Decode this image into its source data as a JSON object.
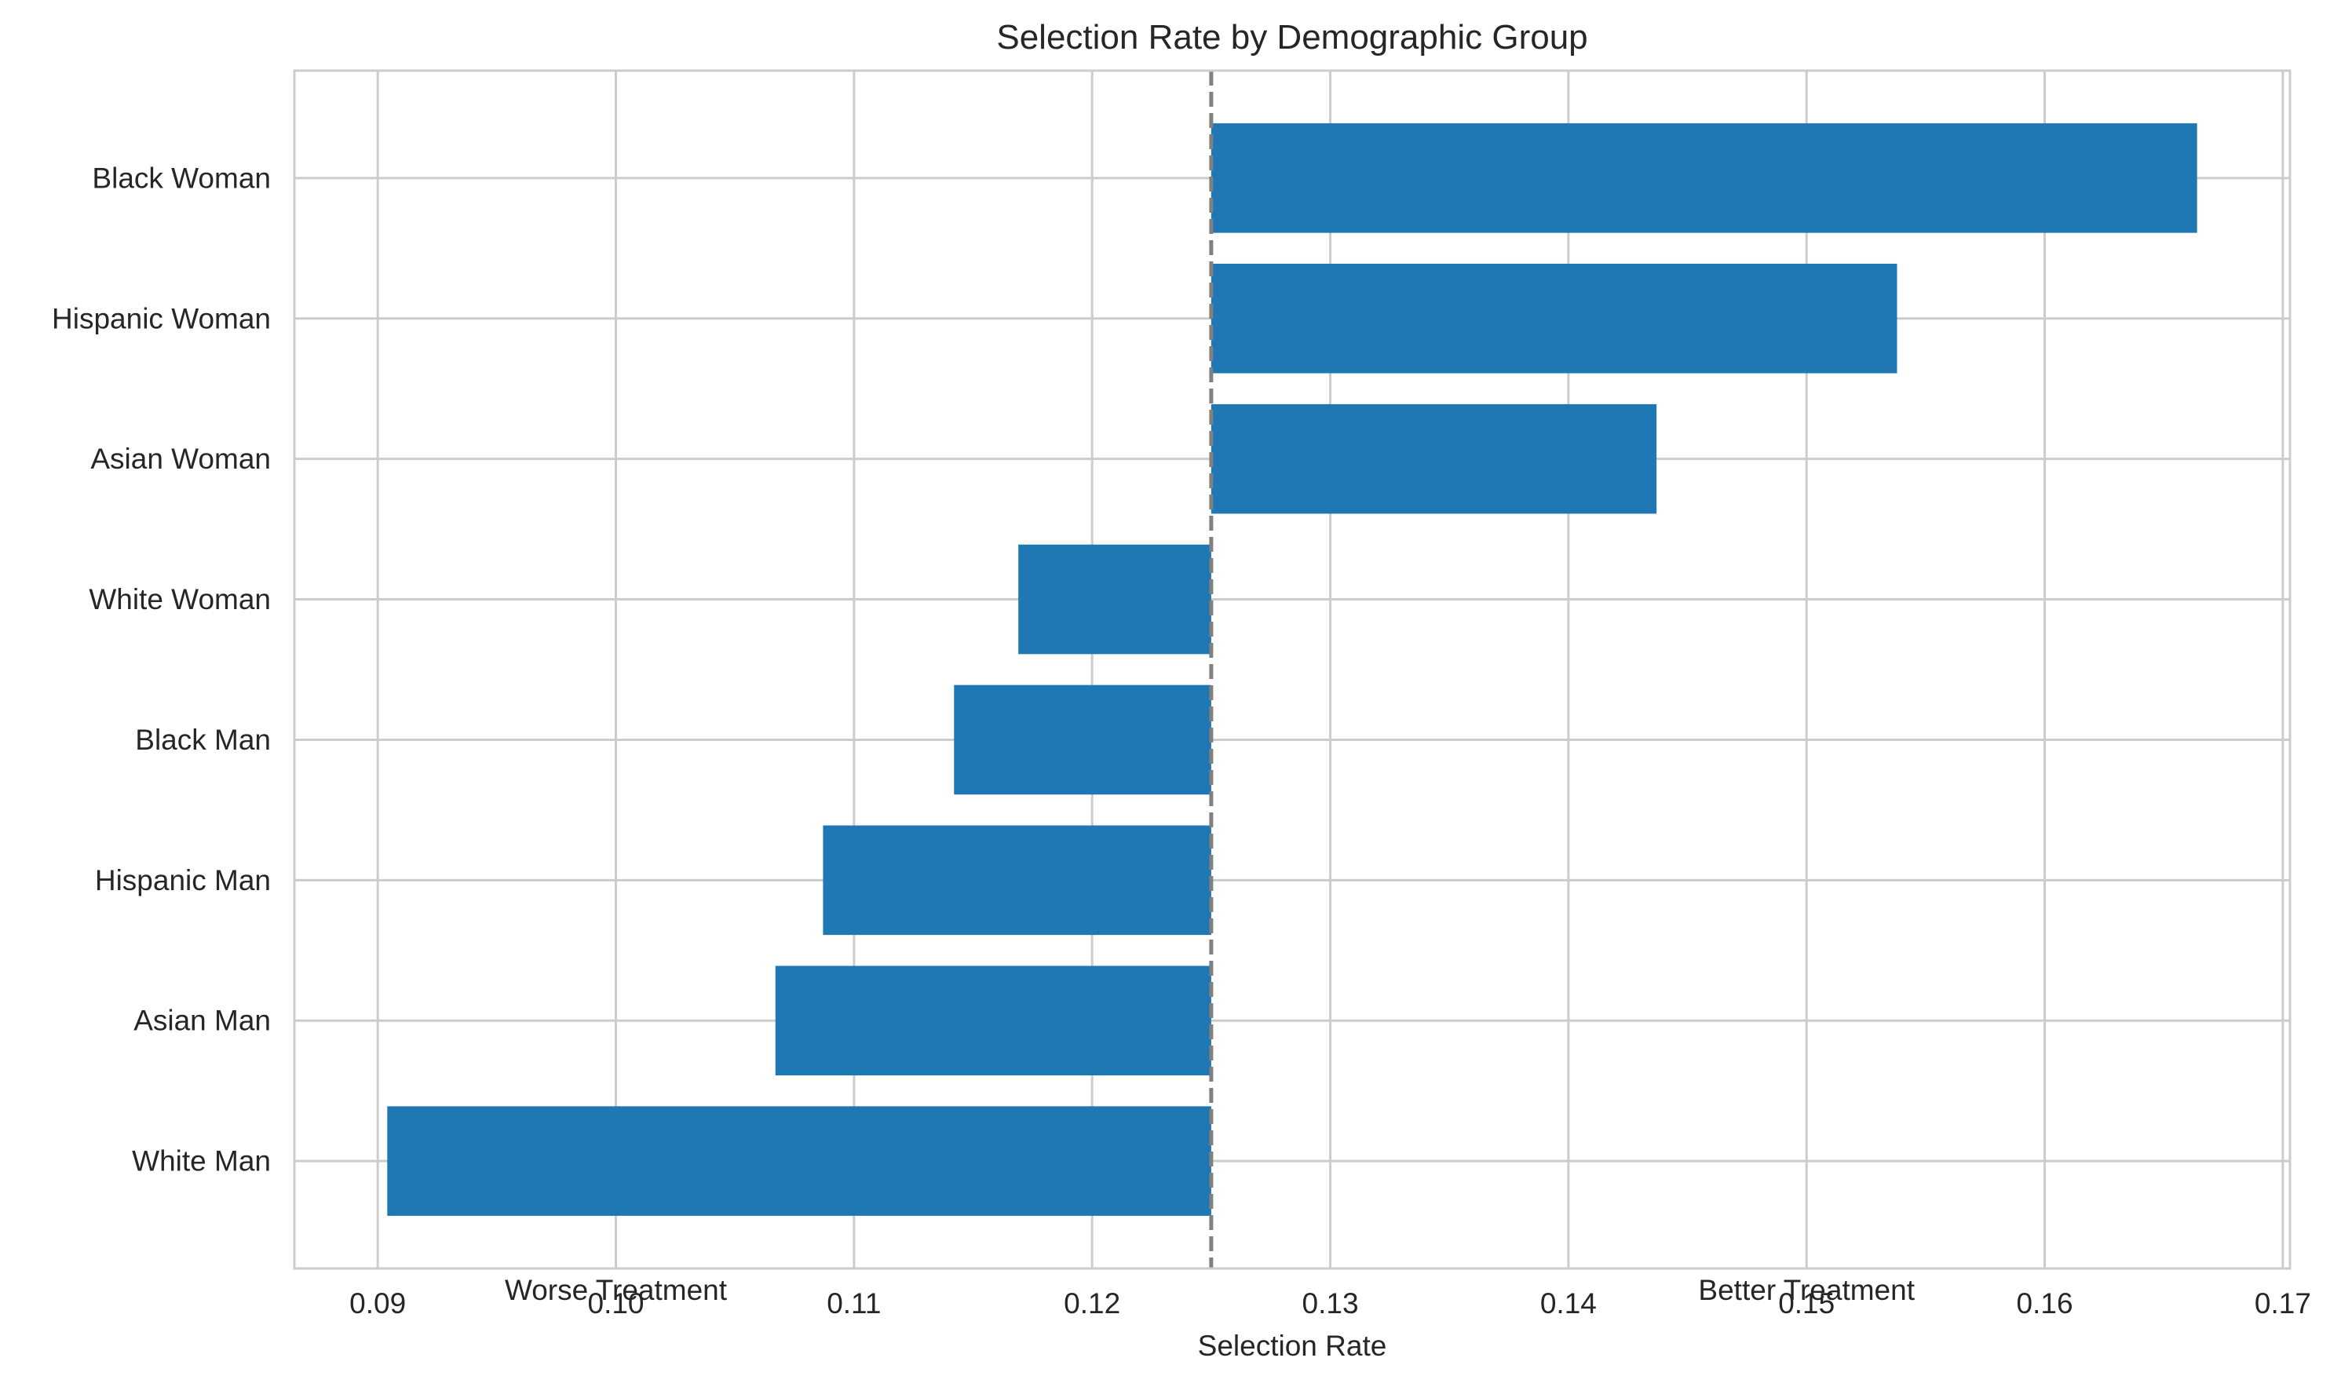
{
  "chart_data": {
    "type": "bar",
    "orientation": "horizontal",
    "title": "Selection Rate by Demographic Group",
    "xlabel": "Selection Rate",
    "ylabel": "",
    "categories": [
      "Black Woman",
      "Hispanic Woman",
      "Asian Woman",
      "White Woman",
      "Black Man",
      "Hispanic Man",
      "Asian Man",
      "White Man"
    ],
    "values": [
      0.1664,
      0.1538,
      0.1437,
      0.1169,
      0.1142,
      0.1087,
      0.1067,
      0.0904
    ],
    "baseline": 0.125,
    "xlim": [
      0.0865,
      0.1703
    ],
    "xticks": [
      "0.09",
      "0.10",
      "0.11",
      "0.12",
      "0.13",
      "0.14",
      "0.15",
      "0.16",
      "0.17"
    ],
    "annotations": [
      {
        "text": "Worse Treatment",
        "x": 0.1
      },
      {
        "text": "Better Treatment",
        "x": 0.15
      }
    ],
    "grid": true,
    "bar_color": "#1f77b4",
    "baseline_color": "#808080",
    "grid_color": "#cccccc"
  }
}
